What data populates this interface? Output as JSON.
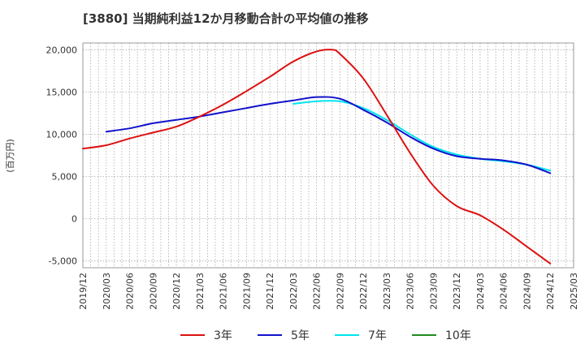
{
  "title": "[3880]  当期純利益12か月移動合計の平均値の推移",
  "chart_data": {
    "type": "line",
    "title": "[3880]  当期純利益12か月移動合計の平均値の推移",
    "xlabel": "",
    "ylabel": "(百万円)",
    "x_ticks": [
      "2019/12",
      "2020/03",
      "2020/06",
      "2020/09",
      "2020/12",
      "2021/03",
      "2021/06",
      "2021/09",
      "2021/12",
      "2022/03",
      "2022/06",
      "2022/09",
      "2022/12",
      "2023/03",
      "2023/06",
      "2023/09",
      "2023/12",
      "2024/03",
      "2024/06",
      "2024/09",
      "2024/12",
      "2025/03"
    ],
    "y_ticks": [
      -5000,
      0,
      5000,
      10000,
      15000,
      20000
    ],
    "y_tick_labels": [
      "-5,000",
      "0",
      "5,000",
      "10,000",
      "15,000",
      "20,000"
    ],
    "ylim": [
      -5800,
      20800
    ],
    "grid": true,
    "legend_position": "bottom",
    "series": [
      {
        "name": "3年",
        "color": "#dd1111",
        "x": [
          "2019/12",
          "2020/03",
          "2020/06",
          "2020/09",
          "2020/12",
          "2021/03",
          "2021/06",
          "2021/09",
          "2021/12",
          "2022/03",
          "2022/06",
          "2022/08",
          "2022/09",
          "2022/12",
          "2023/03",
          "2023/06",
          "2023/09",
          "2023/12",
          "2024/03",
          "2024/06",
          "2024/09",
          "2024/12"
        ],
        "values": [
          8300,
          8700,
          9500,
          10200,
          10900,
          12100,
          13500,
          15100,
          16800,
          18600,
          19800,
          20000,
          19500,
          16600,
          12300,
          7800,
          3900,
          1500,
          400,
          -1300,
          -3300,
          -5300
        ]
      },
      {
        "name": "5年",
        "color": "#1111cc",
        "x": [
          "2020/03",
          "2020/06",
          "2020/09",
          "2020/12",
          "2021/03",
          "2021/06",
          "2021/09",
          "2021/12",
          "2022/03",
          "2022/06",
          "2022/09",
          "2022/12",
          "2023/03",
          "2023/06",
          "2023/09",
          "2023/12",
          "2024/03",
          "2024/06",
          "2024/09",
          "2024/12"
        ],
        "values": [
          10300,
          10700,
          11300,
          11700,
          12100,
          12600,
          13100,
          13600,
          14000,
          14400,
          14200,
          12900,
          11400,
          9700,
          8300,
          7400,
          7100,
          6900,
          6400,
          5400
        ]
      },
      {
        "name": "7年",
        "color": "#00e5ee",
        "x": [
          "2022/03",
          "2022/06",
          "2022/09",
          "2022/12",
          "2023/03",
          "2023/06",
          "2023/09",
          "2023/12",
          "2024/03",
          "2024/06",
          "2024/09",
          "2024/12"
        ],
        "values": [
          13600,
          13900,
          13900,
          13100,
          11700,
          10000,
          8500,
          7600,
          7100,
          6800,
          6400,
          5700
        ]
      },
      {
        "name": "10年",
        "color": "#228b22",
        "x": [],
        "values": []
      }
    ]
  }
}
